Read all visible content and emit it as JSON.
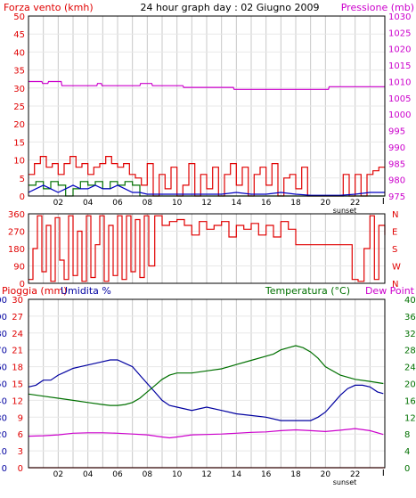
{
  "palette": {
    "wind": "#e00000",
    "gust": "#007000",
    "wind_avg": "#0000c0",
    "pressure": "#cc00cc",
    "direction": "#e00000",
    "humidity": "#0000a0",
    "temperature": "#007000",
    "dewpoint": "#cc00cc",
    "rain": "#e00000",
    "grid": "#c8c8c8",
    "axis_left1": "#e00000",
    "axis_left2": "#0000a0",
    "axis_right": "#007000"
  },
  "hour_ticks": [
    "02",
    "04",
    "06",
    "08",
    "10",
    "12",
    "14",
    "16",
    "18",
    "20",
    "22"
  ],
  "sunset_label": "sunset",
  "chart_data": [
    {
      "type": "line",
      "title": "24 hour graph day : 02 Giugno 2009",
      "left_label": "Forza vento (kmh)",
      "right_label": "Pressione (mb)",
      "x_unit": "hour",
      "xlim": [
        0,
        24
      ],
      "ylim_left": [
        0,
        50
      ],
      "yticks_left": [
        0,
        5,
        10,
        15,
        20,
        25,
        30,
        35,
        40,
        45,
        50
      ],
      "ylim_right": [
        975,
        1030
      ],
      "yticks_right": [
        975,
        980,
        985,
        990,
        995,
        1000,
        1005,
        1010,
        1015,
        1020,
        1025,
        1030
      ],
      "series": [
        {
          "key": "pressure",
          "axis": "right",
          "color_key": "pressure",
          "x": [
            0,
            0.9,
            0.95,
            1.3,
            1.35,
            2.2,
            2.25,
            4.6,
            4.65,
            4.9,
            4.95,
            7.5,
            7.55,
            8.3,
            8.35,
            10.4,
            10.45,
            13.8,
            13.85,
            14.3,
            14.35,
            20.2,
            20.25,
            24
          ],
          "y": [
            1010,
            1010,
            1009.4,
            1009.4,
            1010,
            1010,
            1008.7,
            1008.7,
            1009.4,
            1009.4,
            1008.7,
            1008.7,
            1009.4,
            1009.4,
            1008.7,
            1008.7,
            1008.2,
            1008.2,
            1007.6,
            1007.6,
            1007.6,
            1007.6,
            1008.4,
            1008.4
          ]
        },
        {
          "key": "wind_max",
          "axis": "left",
          "color_key": "wind",
          "step": true,
          "x": [
            0,
            0.4,
            0.8,
            1.2,
            1.6,
            2.0,
            2.4,
            2.8,
            3.2,
            3.6,
            4.0,
            4.4,
            4.8,
            5.2,
            5.6,
            6.0,
            6.4,
            6.8,
            7.2,
            7.6,
            8.0,
            8.4,
            8.8,
            9.2,
            9.6,
            10.0,
            10.4,
            10.8,
            11.2,
            11.6,
            12.0,
            12.4,
            12.8,
            13.2,
            13.6,
            14.0,
            14.4,
            14.8,
            15.2,
            15.6,
            16.0,
            16.4,
            16.8,
            17.2,
            17.6,
            18.0,
            18.4,
            18.8,
            19.2,
            19.6,
            20.0,
            20.4,
            20.8,
            21.2,
            21.6,
            22.0,
            22.4,
            22.8,
            23.2,
            23.6,
            24
          ],
          "y": [
            6,
            9,
            11,
            8,
            9,
            6,
            9,
            11,
            8,
            9,
            6,
            8,
            9,
            11,
            9,
            8,
            9,
            6,
            5,
            3,
            9,
            0,
            6,
            2,
            8,
            0,
            3,
            9,
            0,
            6,
            2,
            8,
            0,
            6,
            9,
            3,
            8,
            0,
            6,
            8,
            3,
            9,
            0,
            5,
            6,
            2,
            8,
            0,
            0,
            0,
            0,
            0,
            0,
            6,
            0,
            6,
            0,
            6,
            7,
            8,
            8
          ]
        },
        {
          "key": "wind_gust",
          "axis": "left",
          "color_key": "gust",
          "step": true,
          "x": [
            0,
            0.5,
            1.0,
            1.5,
            2.0,
            2.5,
            3.0,
            3.5,
            4.0,
            4.5,
            5.0,
            5.5,
            6.0,
            6.5,
            7.0,
            7.5,
            8.0,
            9.0,
            10.0,
            24
          ],
          "y": [
            3,
            4,
            2,
            4,
            3,
            0,
            2,
            4,
            3,
            4,
            2,
            4,
            3,
            4,
            3,
            0,
            0,
            0,
            0,
            0
          ]
        },
        {
          "key": "wind_avg",
          "axis": "left",
          "color_key": "wind_avg",
          "x": [
            0,
            0.5,
            1.0,
            1.5,
            2.0,
            2.5,
            3.0,
            3.5,
            4.0,
            4.5,
            5.0,
            5.5,
            6.0,
            6.5,
            7.0,
            7.5,
            8.0,
            9.0,
            10.0,
            11.0,
            12.0,
            13.0,
            14.0,
            15.0,
            16.0,
            17.0,
            18.0,
            19.0,
            20.0,
            21.0,
            22.0,
            23.0,
            24.0
          ],
          "y": [
            1,
            2,
            3,
            2,
            1,
            2,
            3,
            2,
            2,
            3,
            2,
            2,
            3,
            2,
            1,
            1,
            0.5,
            0.5,
            0.5,
            0.5,
            0.5,
            0.5,
            1,
            0.5,
            0.5,
            1,
            0.5,
            0.2,
            0.2,
            0.2,
            0.5,
            1,
            1
          ]
        }
      ]
    },
    {
      "type": "line",
      "x_unit": "hour",
      "xlim": [
        0,
        24
      ],
      "ylim": [
        0,
        360
      ],
      "yticks": [
        0,
        90,
        180,
        270,
        360
      ],
      "ytick_labels": [
        "0",
        "90",
        "180",
        "270",
        "360"
      ],
      "right_labels": [
        "N",
        "W",
        "S",
        "E",
        "N"
      ],
      "series": [
        {
          "key": "direction",
          "color_key": "direction",
          "step": true,
          "x": [
            0,
            0.3,
            0.6,
            0.9,
            1.2,
            1.5,
            1.8,
            2.1,
            2.4,
            2.7,
            3.0,
            3.3,
            3.6,
            3.9,
            4.2,
            4.5,
            4.8,
            5.1,
            5.4,
            5.7,
            6.0,
            6.3,
            6.6,
            6.9,
            7.2,
            7.5,
            7.8,
            8.1,
            8.5,
            9.0,
            9.5,
            10.0,
            10.5,
            11.0,
            11.5,
            12.0,
            12.5,
            13.0,
            13.5,
            14.0,
            14.5,
            15.0,
            15.5,
            16.0,
            16.5,
            17.0,
            17.5,
            18.0,
            19.0,
            20.0,
            21.0,
            21.8,
            22.2,
            22.6,
            23.0,
            23.3,
            23.6,
            24
          ],
          "y": [
            20,
            180,
            350,
            60,
            300,
            10,
            340,
            120,
            20,
            350,
            40,
            270,
            10,
            350,
            30,
            200,
            350,
            10,
            300,
            40,
            350,
            20,
            350,
            60,
            330,
            30,
            350,
            90,
            350,
            300,
            320,
            330,
            300,
            250,
            320,
            280,
            300,
            320,
            240,
            300,
            280,
            310,
            250,
            300,
            240,
            320,
            280,
            200,
            200,
            200,
            200,
            20,
            10,
            180,
            350,
            20,
            300,
            250
          ]
        }
      ]
    },
    {
      "type": "line",
      "left_label_1": "Pioggia (mm)",
      "left_label_2": "Umidita %",
      "right_label_1": "Temperatura (°C)",
      "right_label_2": "Dew Point",
      "x_unit": "hour",
      "xlim": [
        0,
        24
      ],
      "ylim_humidity": [
        0,
        100
      ],
      "yticks_humidity": [
        0,
        10,
        20,
        30,
        40,
        50,
        60,
        70,
        80,
        90,
        100
      ],
      "ylim_rain": [
        0,
        30
      ],
      "yticks_rain": [
        0,
        3,
        6,
        9,
        12,
        15,
        18,
        21,
        24,
        27,
        30
      ],
      "ylim_temp": [
        0,
        40
      ],
      "yticks_temp": [
        0,
        4,
        8,
        12,
        16,
        20,
        24,
        28,
        32,
        36,
        40
      ],
      "series": [
        {
          "key": "humidity",
          "axis": "humidity",
          "color_key": "humidity",
          "x": [
            0,
            0.5,
            1.0,
            1.5,
            2.0,
            2.5,
            3.0,
            3.5,
            4.0,
            4.5,
            5.0,
            5.5,
            6.0,
            6.5,
            7.0,
            7.5,
            8.0,
            8.5,
            9.0,
            9.5,
            10.0,
            11.0,
            12.0,
            13.0,
            14.0,
            15.0,
            16.0,
            17.0,
            17.5,
            18.0,
            18.5,
            19.0,
            19.5,
            20.0,
            20.5,
            21.0,
            21.5,
            22.0,
            22.5,
            23.0,
            23.5,
            23.9
          ],
          "y": [
            48,
            49,
            52,
            52,
            55,
            57,
            59,
            60,
            61,
            62,
            63,
            64,
            64,
            62,
            60,
            55,
            50,
            45,
            40,
            37,
            36,
            34,
            36,
            34,
            32,
            31,
            30,
            28,
            28,
            28,
            28,
            28,
            30,
            33,
            38,
            43,
            47,
            49,
            49,
            48,
            45,
            44
          ]
        },
        {
          "key": "temperature",
          "axis": "temp",
          "color_key": "temperature",
          "x": [
            0,
            1.0,
            2.0,
            3.0,
            4.0,
            5.0,
            5.5,
            6.0,
            6.5,
            7.0,
            7.5,
            8.0,
            8.5,
            9.0,
            9.5,
            10.0,
            11.0,
            12.0,
            13.0,
            14.0,
            15.0,
            16.0,
            16.5,
            17.0,
            17.5,
            18.0,
            18.5,
            19.0,
            19.5,
            20.0,
            21.0,
            22.0,
            23.0,
            23.9
          ],
          "y": [
            17.5,
            17,
            16.5,
            16,
            15.5,
            15,
            14.8,
            14.8,
            15,
            15.5,
            16.5,
            18,
            19.5,
            21,
            22,
            22.5,
            22.5,
            23,
            23.5,
            24.5,
            25.5,
            26.5,
            27,
            28,
            28.5,
            29,
            28.5,
            27.5,
            26,
            24,
            22,
            21,
            20.5,
            20
          ]
        },
        {
          "key": "dewpoint",
          "axis": "temp",
          "color_key": "dewpoint",
          "x": [
            0,
            1.0,
            2.0,
            3.0,
            4.0,
            5.0,
            6.0,
            7.0,
            8.0,
            9.0,
            9.5,
            10.0,
            11.0,
            12.0,
            13.0,
            14.0,
            15.0,
            16.0,
            17.0,
            18.0,
            19.0,
            20.0,
            21.0,
            22.0,
            23.0,
            23.9
          ],
          "y": [
            7.5,
            7.6,
            7.8,
            8.2,
            8.3,
            8.3,
            8.2,
            8.0,
            7.8,
            7.3,
            7.1,
            7.3,
            7.8,
            7.9,
            8.0,
            8.2,
            8.4,
            8.5,
            8.8,
            9.0,
            8.8,
            8.6,
            8.9,
            9.3,
            8.8,
            7.9
          ]
        },
        {
          "key": "rain",
          "axis": "rain",
          "color_key": "rain",
          "x": [
            0,
            24
          ],
          "y": [
            0,
            0
          ]
        }
      ]
    }
  ]
}
